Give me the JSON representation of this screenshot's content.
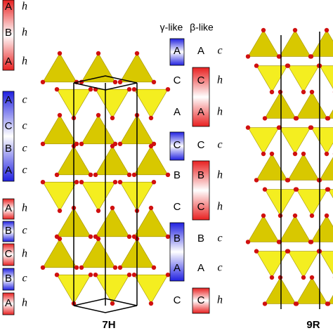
{
  "left_stacks": [
    {
      "letters": [
        "A",
        "B",
        "A"
      ],
      "stacking": [
        "h",
        "h",
        "h"
      ]
    },
    {
      "letters": [
        "A",
        "C",
        "B",
        "A"
      ],
      "stacking": [
        "c",
        "c",
        "c",
        "c"
      ]
    },
    {
      "letters": [
        "A",
        "B",
        "C",
        "B",
        "A"
      ],
      "stacking": [
        "h",
        "c",
        "h",
        "c",
        "h"
      ]
    }
  ],
  "middle": {
    "headers": [
      "γ-like",
      "β-like"
    ],
    "gamma": [
      "A",
      "C",
      "A",
      "C",
      "B",
      "C",
      "B",
      "A",
      "C"
    ],
    "beta": [
      "A",
      "C",
      "A",
      "C",
      "B",
      "C",
      "B",
      "A",
      "C"
    ],
    "stacking": [
      "c",
      "h",
      "h",
      "c",
      "h",
      "h",
      "c",
      "c",
      "h"
    ]
  },
  "labels": [
    "7H",
    "9R"
  ]
}
